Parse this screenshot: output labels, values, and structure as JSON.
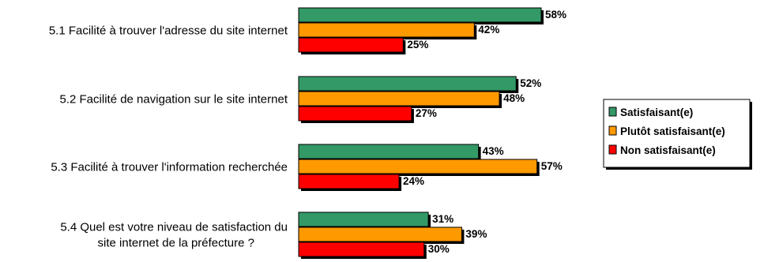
{
  "chart_data": {
    "type": "bar",
    "orientation": "horizontal",
    "categories": [
      [
        "5.1 Facilité à trouver l'adresse du site internet"
      ],
      [
        "5.2 Facilité de navigation sur le site internet"
      ],
      [
        "5.3 Facilité à trouver l'information recherchée"
      ],
      [
        "5.4  Quel est votre niveau de satisfaction du",
        "site internet de la préfecture ?"
      ]
    ],
    "series": [
      {
        "name": "Satisfaisant(e)",
        "color": "#339966",
        "values": [
          58,
          52,
          43,
          31
        ]
      },
      {
        "name": "Plutôt satisfaisant(e)",
        "color": "#ff9900",
        "values": [
          42,
          48,
          57,
          39
        ]
      },
      {
        "name": "Non satisfaisant(e)",
        "color": "#ff0000",
        "values": [
          25,
          27,
          24,
          30
        ]
      }
    ],
    "value_suffix": "%",
    "xlim": [
      0,
      60
    ],
    "legend_position": "right",
    "grid": false
  }
}
